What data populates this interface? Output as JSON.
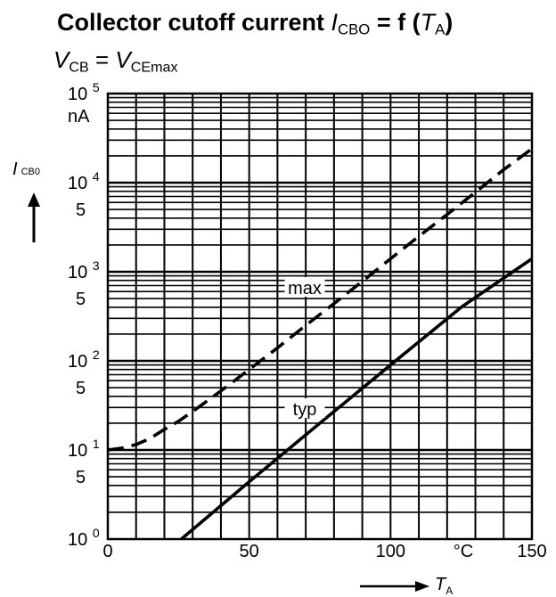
{
  "title": {
    "prefix": "Collector cutoff current ",
    "symbol": "I",
    "symbol_sub": "CBO",
    "middle": " = f (",
    "arg": "T",
    "arg_sub": "A",
    "suffix": ")"
  },
  "subtitle": {
    "lhs": "V",
    "lhs_sub": "CB",
    "eq": " = ",
    "rhs": "V",
    "rhs_sub": "CEmax"
  },
  "chart_data": {
    "type": "line",
    "x_axis": {
      "label": "T",
      "label_sub": "A",
      "unit": "°C",
      "range": [
        0,
        150
      ],
      "ticks": [
        0,
        50,
        100,
        150
      ]
    },
    "y_axis": {
      "label": "I",
      "label_sub": "CB0",
      "unit": "nA",
      "scale": "log",
      "range": [
        1,
        100000
      ],
      "tick_labels": [
        {
          "value": 100000,
          "base": "10",
          "exp": "5"
        },
        {
          "value": 10000,
          "base": "10",
          "exp": "4"
        },
        {
          "value": 5000,
          "text": "5"
        },
        {
          "value": 1000,
          "base": "10",
          "exp": "3"
        },
        {
          "value": 500,
          "text": "5"
        },
        {
          "value": 100,
          "base": "10",
          "exp": "2"
        },
        {
          "value": 50,
          "text": "5"
        },
        {
          "value": 10,
          "base": "10",
          "exp": "1"
        },
        {
          "value": 5,
          "text": "5"
        },
        {
          "value": 1,
          "base": "10",
          "exp": "0"
        }
      ]
    },
    "grid": true,
    "series": [
      {
        "name": "max",
        "style": "dashed",
        "x": [
          0,
          5,
          10,
          15,
          20,
          25,
          30,
          40,
          50,
          60,
          70,
          80,
          90,
          100,
          110,
          120,
          130,
          140,
          150
        ],
        "y": [
          10,
          10.5,
          11.5,
          13.5,
          17,
          21,
          27,
          46,
          80,
          140,
          250,
          440,
          780,
          1400,
          2500,
          4400,
          7800,
          14000,
          24000
        ]
      },
      {
        "name": "typ",
        "style": "solid",
        "x": [
          26,
          50,
          75,
          100,
          125,
          150
        ],
        "y": [
          1,
          4.4,
          20,
          90,
          400,
          1400
        ]
      }
    ]
  }
}
